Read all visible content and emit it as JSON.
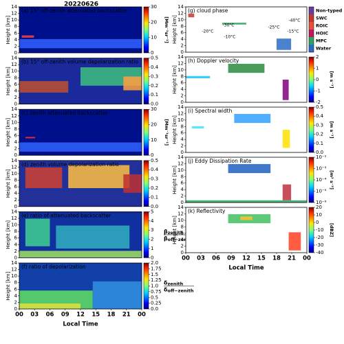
{
  "title": "20220626",
  "chart_data": [
    {
      "type": "heatmap",
      "title": "(a) 15° off-zenith attenuated backscatter",
      "ylabel": "Height [km]",
      "ylim": [
        0,
        14
      ],
      "yticks": [
        0,
        2,
        4,
        6,
        8,
        10,
        12,
        14
      ],
      "clim": [
        0,
        30
      ],
      "cticks": [
        0,
        10,
        20,
        30
      ],
      "colorbar_label": "[Mm⁻¹sr⁻¹]"
    },
    {
      "type": "heatmap",
      "title": "(b) 15° off-zenith volume depolarization ratio",
      "ylabel": "Height [km]",
      "ylim": [
        0,
        14
      ],
      "yticks": [
        0,
        2,
        4,
        6,
        8,
        10,
        12,
        14
      ],
      "clim": [
        0,
        0.5
      ],
      "cticks": [
        {
          "value": 0,
          "label": "0.0"
        },
        0.1,
        0.2,
        0.3,
        0.4,
        0.5
      ]
    },
    {
      "type": "heatmap",
      "title": "(c) zenith attenuated backscatter",
      "ylabel": "Height [km]",
      "ylim": [
        0,
        14
      ],
      "yticks": [
        0,
        2,
        4,
        6,
        8,
        10,
        12,
        14
      ],
      "clim": [
        0,
        30
      ],
      "cticks": [
        0,
        10,
        20,
        30
      ],
      "colorbar_label": "[Mm⁻¹sr⁻¹]"
    },
    {
      "type": "heatmap",
      "title": "(d) zenith volume depolarization ratio",
      "ylabel": "Height [km]",
      "ylim": [
        0,
        14
      ],
      "yticks": [
        0,
        2,
        4,
        6,
        8,
        10,
        12,
        14
      ],
      "clim": [
        0,
        0.5
      ],
      "cticks": [
        {
          "value": 0,
          "label": "0.0"
        },
        0.1,
        0.2,
        0.3,
        0.4,
        0.5
      ]
    },
    {
      "type": "heatmap",
      "title": "(e) ratio of attenuated backscatter",
      "ylabel": "Height [km]",
      "ylim": [
        0,
        14
      ],
      "yticks": [
        0,
        2,
        4,
        6,
        8,
        10,
        12,
        14
      ],
      "clim": [
        0,
        5
      ],
      "cticks": [
        0,
        1,
        2,
        3,
        4,
        5
      ],
      "colorbar_fraction": {
        "symbol": "β",
        "top": "zenith",
        "bottom": "off−zenith"
      }
    },
    {
      "type": "heatmap",
      "title": "(f) ratio of depolarization",
      "ylabel": "Height [km]",
      "ylim": [
        0,
        14
      ],
      "yticks": [
        0,
        2,
        4,
        6,
        8,
        10,
        12,
        14
      ],
      "clim": [
        0,
        2
      ],
      "cticks": [
        {
          "value": 0,
          "label": "0.0"
        },
        0.25,
        0.5,
        0.75,
        {
          "value": 1,
          "label": "1.0"
        },
        1.25,
        1.5,
        1.75,
        {
          "value": 2,
          "label": "2.0"
        }
      ],
      "colorbar_fraction": {
        "symbol": "δ",
        "top": "zenith",
        "bottom": "off−zenith"
      },
      "xlabel": "Local Time",
      "xlim": [
        0,
        24
      ],
      "xticks": [
        {
          "value": 0,
          "label": "00"
        },
        {
          "value": 3,
          "label": "03"
        },
        {
          "value": 6,
          "label": "06"
        },
        {
          "value": 9,
          "label": "09"
        },
        12,
        15,
        18,
        21,
        {
          "value": 24,
          "label": "00"
        }
      ]
    },
    {
      "type": "categorical",
      "title": "(g) cloud phase",
      "ylabel": "Height [km]",
      "ylim": [
        0,
        14
      ],
      "yticks": [
        0,
        2,
        4,
        6,
        8,
        10,
        12,
        14
      ],
      "classes": [
        {
          "name": "Non-typed",
          "color": "#6a3d9a"
        },
        {
          "name": "SWC",
          "color": "#c0392b"
        },
        {
          "name": "ROIC",
          "color": "#e8503a"
        },
        {
          "name": "HOIC",
          "color": "#c2185b"
        },
        {
          "name": "MPC",
          "color": "#2ca25f"
        },
        {
          "name": "Water",
          "color": "#2b6cc4"
        }
      ],
      "annotations": [
        "-40°C",
        "-30°C",
        "-25°C",
        "-20°C",
        "-15°C",
        "-10°C"
      ]
    },
    {
      "type": "heatmap",
      "title": "(h) Doppler velocity",
      "ylabel": "Height [km]",
      "ylim": [
        0,
        14
      ],
      "yticks": [
        0,
        2,
        4,
        6,
        8,
        10,
        12,
        14
      ],
      "clim": [
        -2,
        2
      ],
      "cticks": [
        -2,
        -1,
        0,
        1,
        2
      ],
      "colorbar_label": "[m s⁻¹]"
    },
    {
      "type": "heatmap",
      "title": "(i) Spectral width",
      "ylabel": "Height [km]",
      "ylim": [
        0,
        14
      ],
      "yticks": [
        0,
        2,
        4,
        6,
        8,
        10,
        12,
        14
      ],
      "clim": [
        0,
        0.5
      ],
      "cticks": [
        {
          "value": 0,
          "label": "0.0"
        },
        0.1,
        0.2,
        0.3,
        0.4,
        0.5
      ],
      "colorbar_label": "[m s⁻¹]"
    },
    {
      "type": "heatmap",
      "title": "(j) Eddy Dissipation Rate",
      "ylabel": "Height [km]",
      "ylim": [
        0,
        14
      ],
      "yticks": [
        0,
        2,
        4,
        6,
        8,
        10,
        12,
        14
      ],
      "clim": [
        1e-06,
        0.01
      ],
      "clog": true,
      "cticks": [
        {
          "value": 1e-06,
          "label": "10⁻⁶"
        },
        {
          "value": 1e-05,
          "label": "10⁻⁵"
        },
        {
          "value": 0.0001,
          "label": "10⁻⁴"
        },
        {
          "value": 0.001,
          "label": "10⁻³"
        },
        {
          "value": 0.01,
          "label": "10⁻²"
        }
      ],
      "colorbar_label": "[m² s⁻³]"
    },
    {
      "type": "heatmap",
      "title": "(k) Reflectivity",
      "ylabel": "Height [km]",
      "ylim": [
        0,
        14
      ],
      "yticks": [
        0,
        2,
        4,
        6,
        8,
        10,
        12,
        14
      ],
      "clim": [
        -40,
        20
      ],
      "cticks": [
        -40,
        -30,
        -20,
        -10,
        0,
        10,
        20
      ],
      "colorbar_label": "[dBZ]",
      "xlabel": "Local Time",
      "xlim": [
        0,
        24
      ],
      "xticks": [
        {
          "value": 0,
          "label": "00"
        },
        {
          "value": 3,
          "label": "03"
        },
        {
          "value": 6,
          "label": "06"
        },
        {
          "value": 9,
          "label": "09"
        },
        12,
        15,
        18,
        21,
        {
          "value": 24,
          "label": "00"
        }
      ]
    }
  ]
}
